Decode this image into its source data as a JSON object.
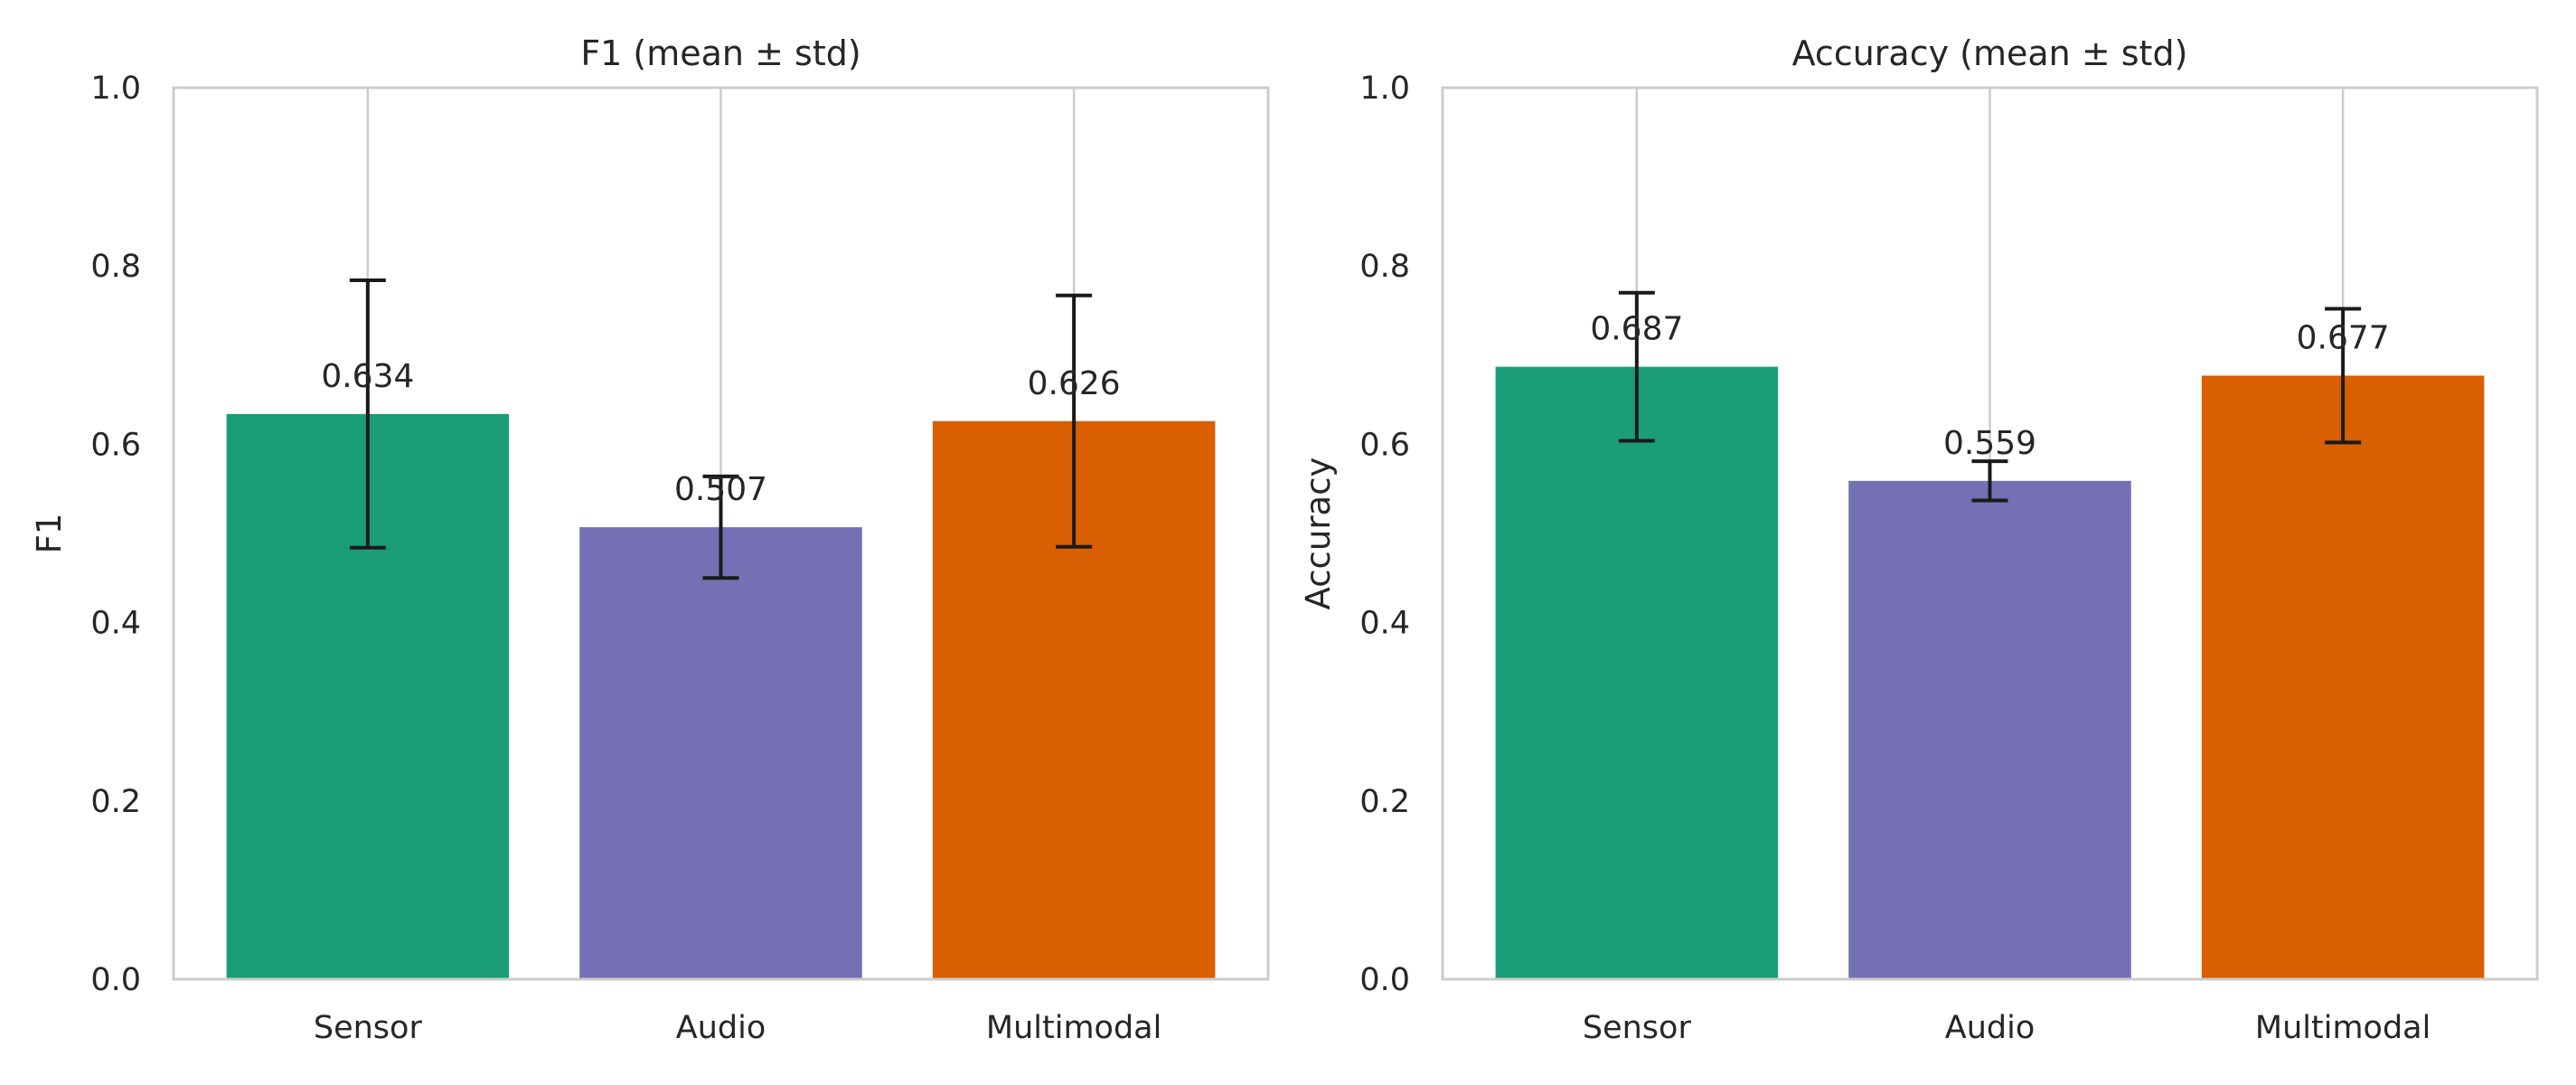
{
  "chart_data": [
    {
      "type": "bar",
      "title": "F1 (mean ± std)",
      "xlabel": "",
      "ylabel": "F1",
      "ylim": [
        0,
        1.0
      ],
      "yticks": [
        "0.0",
        "0.2",
        "0.4",
        "0.6",
        "0.8",
        "1.0"
      ],
      "grid": "vertical",
      "categories": [
        "Sensor",
        "Audio",
        "Multimodal"
      ],
      "values": [
        0.634,
        0.507,
        0.626
      ],
      "std": [
        0.15,
        0.057,
        0.141
      ],
      "value_labels": [
        "0.634",
        "0.507",
        "0.626"
      ],
      "colors": [
        "#1b9e77",
        "#7570b3",
        "#d95f02"
      ]
    },
    {
      "type": "bar",
      "title": "Accuracy (mean ± std)",
      "xlabel": "",
      "ylabel": "Accuracy",
      "ylim": [
        0,
        1.0
      ],
      "yticks": [
        "0.0",
        "0.2",
        "0.4",
        "0.6",
        "0.8",
        "1.0"
      ],
      "grid": "vertical",
      "categories": [
        "Sensor",
        "Audio",
        "Multimodal"
      ],
      "values": [
        0.687,
        0.559,
        0.677
      ],
      "std": [
        0.083,
        0.022,
        0.075
      ],
      "value_labels": [
        "0.687",
        "0.559",
        "0.677"
      ],
      "colors": [
        "#1b9e77",
        "#7570b3",
        "#d95f02"
      ]
    }
  ]
}
